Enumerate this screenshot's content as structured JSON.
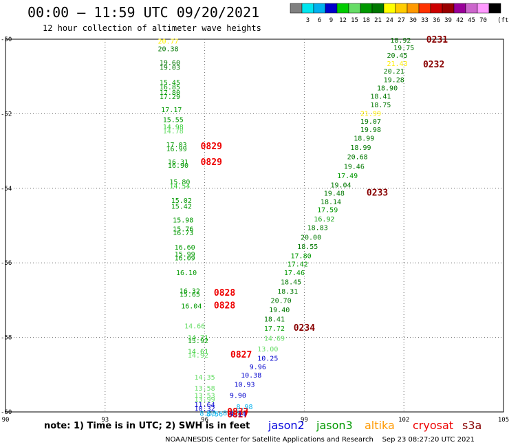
{
  "title": "00:00 — 11:59 UTC 09/20/2021",
  "subtitle": "12 hour collection of altimeter wave heights",
  "note": "note: 1) Time is in UTC; 2) SWH is in feet",
  "footer": "NOAA/NESDIS Center for Satellite Applications and Research    Sep 23 08:27:20 UTC 2021",
  "satellites": [
    {
      "name": "jason2",
      "color": "#0000dd"
    },
    {
      "name": "jason3",
      "color": "#009900"
    },
    {
      "name": "altika",
      "color": "#ff9900"
    },
    {
      "name": "cryosat",
      "color": "#ee0000"
    },
    {
      "name": "s3a",
      "color": "#880000"
    }
  ],
  "colorbar": {
    "unit": "(ft)",
    "labels": [
      "3",
      "6",
      "9",
      "12",
      "15",
      "18",
      "21",
      "24",
      "27",
      "30",
      "33",
      "36",
      "39",
      "42",
      "45",
      "70"
    ],
    "colors": [
      "#808080",
      "#00e5ee",
      "#00b0ee",
      "#0000cc",
      "#00cc00",
      "#66dd66",
      "#009900",
      "#007700",
      "#ffff00",
      "#ffcc00",
      "#ff9900",
      "#ff3300",
      "#cc0000",
      "#990000",
      "#990099",
      "#cc66cc",
      "#ff99ff",
      "#000000"
    ]
  },
  "chart_data": {
    "type": "scatter",
    "title": "00:00 — 11:59 UTC 09/20/2021",
    "xticks": [
      90,
      93,
      96,
      99,
      102,
      105
    ],
    "yticks": [
      -50,
      -52,
      -54,
      -56,
      -58,
      -60
    ],
    "xlim": [
      90,
      105
    ],
    "ylim": [
      -60.0,
      -50.0
    ],
    "grid": true,
    "series": [
      {
        "name": "wave heights",
        "points": [
          {
            "lon": 94.9,
            "lat": -50.05,
            "text": "20.77",
            "color": "#ffee00"
          },
          {
            "lon": 94.9,
            "lat": -50.25,
            "text": "20.38",
            "color": "#007700"
          },
          {
            "lon": 94.95,
            "lat": -50.62,
            "text": "19.60",
            "color": "#007700"
          },
          {
            "lon": 94.95,
            "lat": -50.75,
            "text": "19.03",
            "color": "#007700"
          },
          {
            "lon": 94.95,
            "lat": -51.15,
            "text": "15.45",
            "color": "#009900"
          },
          {
            "lon": 94.95,
            "lat": -51.27,
            "text": "16.85",
            "color": "#009900"
          },
          {
            "lon": 94.95,
            "lat": -51.42,
            "text": "17.80",
            "color": "#009900"
          },
          {
            "lon": 94.95,
            "lat": -51.53,
            "text": "17.29",
            "color": "#009900"
          },
          {
            "lon": 95.0,
            "lat": -51.88,
            "text": "17.17",
            "color": "#009900"
          },
          {
            "lon": 95.05,
            "lat": -52.15,
            "text": "15.55",
            "color": "#009900"
          },
          {
            "lon": 95.05,
            "lat": -52.34,
            "text": "14.98",
            "color": "#33cc33"
          },
          {
            "lon": 95.05,
            "lat": -52.45,
            "text": "14.78",
            "color": "#66dd66"
          },
          {
            "lon": 95.15,
            "lat": -52.82,
            "text": "17.03",
            "color": "#009900"
          },
          {
            "lon": 95.15,
            "lat": -52.93,
            "text": "16.99",
            "color": "#009900"
          },
          {
            "lon": 96.2,
            "lat": -52.88,
            "text": "0829",
            "color": "#ee0000"
          },
          {
            "lon": 95.2,
            "lat": -53.28,
            "text": "16.31",
            "color": "#009900"
          },
          {
            "lon": 95.2,
            "lat": -53.38,
            "text": "16.90",
            "color": "#009900"
          },
          {
            "lon": 96.2,
            "lat": -53.3,
            "text": "0829",
            "color": "#ee0000"
          },
          {
            "lon": 95.25,
            "lat": -53.82,
            "text": "15.80",
            "color": "#009900"
          },
          {
            "lon": 95.25,
            "lat": -53.93,
            "text": "14.54",
            "color": "#33cc33"
          },
          {
            "lon": 95.3,
            "lat": -54.32,
            "text": "15.02",
            "color": "#009900"
          },
          {
            "lon": 95.3,
            "lat": -54.47,
            "text": "15.42",
            "color": "#009900"
          },
          {
            "lon": 95.35,
            "lat": -54.84,
            "text": "15.98",
            "color": "#009900"
          },
          {
            "lon": 95.35,
            "lat": -55.08,
            "text": "15.76",
            "color": "#009900"
          },
          {
            "lon": 95.35,
            "lat": -55.18,
            "text": "16.73",
            "color": "#009900"
          },
          {
            "lon": 95.4,
            "lat": -55.57,
            "text": "16.60",
            "color": "#009900"
          },
          {
            "lon": 95.4,
            "lat": -55.76,
            "text": "15.99",
            "color": "#009900"
          },
          {
            "lon": 95.4,
            "lat": -55.86,
            "text": "16.09",
            "color": "#009900"
          },
          {
            "lon": 95.45,
            "lat": -56.25,
            "text": "16.10",
            "color": "#009900"
          },
          {
            "lon": 95.55,
            "lat": -56.74,
            "text": "16.32",
            "color": "#009900"
          },
          {
            "lon": 95.55,
            "lat": -56.84,
            "text": "15.65",
            "color": "#009900"
          },
          {
            "lon": 96.6,
            "lat": -56.81,
            "text": "0828",
            "color": "#ee0000"
          },
          {
            "lon": 95.6,
            "lat": -57.15,
            "text": "16.04",
            "color": "#009900"
          },
          {
            "lon": 96.6,
            "lat": -57.15,
            "text": "0828",
            "color": "#ee0000"
          },
          {
            "lon": 95.7,
            "lat": -57.68,
            "text": "14.66",
            "color": "#66dd66"
          },
          {
            "lon": 95.8,
            "lat": -58.0,
            "text": "14.71",
            "color": "#33cc33"
          },
          {
            "lon": 95.8,
            "lat": -58.08,
            "text": "15.92",
            "color": "#009900"
          },
          {
            "lon": 95.8,
            "lat": -58.37,
            "text": "14.61",
            "color": "#33cc33"
          },
          {
            "lon": 95.8,
            "lat": -58.47,
            "text": "14.92",
            "color": "#66dd66"
          },
          {
            "lon": 97.1,
            "lat": -58.47,
            "text": "0827",
            "color": "#ee0000"
          },
          {
            "lon": 96.0,
            "lat": -59.06,
            "text": "14.35",
            "color": "#66dd66"
          },
          {
            "lon": 96.0,
            "lat": -59.35,
            "text": "13.58",
            "color": "#66dd66"
          },
          {
            "lon": 96.0,
            "lat": -59.55,
            "text": "13.53",
            "color": "#66dd66"
          },
          {
            "lon": 96.0,
            "lat": -59.65,
            "text": "13.99",
            "color": "#66dd66"
          },
          {
            "lon": 96.0,
            "lat": -59.8,
            "text": "11.64",
            "color": "#0000cc"
          },
          {
            "lon": 96.0,
            "lat": -59.9,
            "text": "10.32",
            "color": "#0000cc"
          },
          {
            "lon": 96.1,
            "lat": -60.03,
            "text": "8.58",
            "color": "#00b0ee"
          },
          {
            "lon": 96.3,
            "lat": -60.05,
            "text": "8.56",
            "color": "#00b0ee"
          },
          {
            "lon": 96.8,
            "lat": -60.02,
            "text": "8.53",
            "color": "#00b0ee"
          },
          {
            "lon": 97.0,
            "lat": -60.0,
            "text": "0827",
            "color": "#ee0000"
          },
          {
            "lon": 97.0,
            "lat": -60.07,
            "text": "0827",
            "color": "#ee0000"
          },
          {
            "lon": 97.2,
            "lat": -59.85,
            "text": "8.98",
            "color": "#00b0ee"
          },
          {
            "lon": 97.0,
            "lat": -60.05,
            "text": "9.14",
            "color": "#0000cc"
          },
          {
            "lon": 97.0,
            "lat": -59.55,
            "text": "9.90",
            "color": "#0000cc"
          },
          {
            "lon": 97.2,
            "lat": -59.25,
            "text": "10.93",
            "color": "#0000cc"
          },
          {
            "lon": 97.4,
            "lat": -59.0,
            "text": "10.38",
            "color": "#0000cc"
          },
          {
            "lon": 97.6,
            "lat": -58.78,
            "text": "9.96",
            "color": "#0000cc"
          },
          {
            "lon": 97.9,
            "lat": -58.55,
            "text": "10.25",
            "color": "#0000cc"
          },
          {
            "lon": 97.9,
            "lat": -58.3,
            "text": "13.00",
            "color": "#66dd66"
          },
          {
            "lon": 98.1,
            "lat": -58.02,
            "text": "14.69",
            "color": "#66dd66"
          },
          {
            "lon": 98.1,
            "lat": -57.75,
            "text": "17.72",
            "color": "#009900"
          },
          {
            "lon": 99.0,
            "lat": -57.75,
            "text": "0234",
            "color": "#880000"
          },
          {
            "lon": 98.1,
            "lat": -57.5,
            "text": "18.41",
            "color": "#007700"
          },
          {
            "lon": 98.25,
            "lat": -57.25,
            "text": "19.40",
            "color": "#007700"
          },
          {
            "lon": 98.3,
            "lat": -57.0,
            "text": "20.70",
            "color": "#007700"
          },
          {
            "lon": 98.5,
            "lat": -56.75,
            "text": "18.31",
            "color": "#007700"
          },
          {
            "lon": 98.6,
            "lat": -56.5,
            "text": "18.45",
            "color": "#007700"
          },
          {
            "lon": 98.7,
            "lat": -56.25,
            "text": "17.46",
            "color": "#009900"
          },
          {
            "lon": 98.8,
            "lat": -56.02,
            "text": "17.42",
            "color": "#009900"
          },
          {
            "lon": 98.9,
            "lat": -55.8,
            "text": "17.80",
            "color": "#009900"
          },
          {
            "lon": 99.1,
            "lat": -55.55,
            "text": "18.55",
            "color": "#007700"
          },
          {
            "lon": 99.2,
            "lat": -55.3,
            "text": "20.00",
            "color": "#007700"
          },
          {
            "lon": 99.4,
            "lat": -55.05,
            "text": "18.83",
            "color": "#007700"
          },
          {
            "lon": 99.6,
            "lat": -54.82,
            "text": "16.92",
            "color": "#009900"
          },
          {
            "lon": 99.7,
            "lat": -54.57,
            "text": "17.59",
            "color": "#009900"
          },
          {
            "lon": 99.8,
            "lat": -54.35,
            "text": "18.14",
            "color": "#007700"
          },
          {
            "lon": 99.9,
            "lat": -54.12,
            "text": "19.48",
            "color": "#007700"
          },
          {
            "lon": 101.2,
            "lat": -54.12,
            "text": "0233",
            "color": "#880000"
          },
          {
            "lon": 100.1,
            "lat": -53.9,
            "text": "19.04",
            "color": "#007700"
          },
          {
            "lon": 100.3,
            "lat": -53.65,
            "text": "17.49",
            "color": "#009900"
          },
          {
            "lon": 100.5,
            "lat": -53.4,
            "text": "19.46",
            "color": "#007700"
          },
          {
            "lon": 100.6,
            "lat": -53.15,
            "text": "20.68",
            "color": "#007700"
          },
          {
            "lon": 100.7,
            "lat": -52.9,
            "text": "18.99",
            "color": "#007700"
          },
          {
            "lon": 100.8,
            "lat": -52.65,
            "text": "18.99",
            "color": "#007700"
          },
          {
            "lon": 101.0,
            "lat": -52.42,
            "text": "19.98",
            "color": "#007700"
          },
          {
            "lon": 101.0,
            "lat": -52.2,
            "text": "19.07",
            "color": "#007700"
          },
          {
            "lon": 101.0,
            "lat": -51.98,
            "text": "21.99",
            "color": "#ffee00"
          },
          {
            "lon": 101.3,
            "lat": -51.75,
            "text": "18.75",
            "color": "#007700"
          },
          {
            "lon": 101.3,
            "lat": -51.52,
            "text": "18.41",
            "color": "#007700"
          },
          {
            "lon": 101.5,
            "lat": -51.3,
            "text": "18.90",
            "color": "#007700"
          },
          {
            "lon": 101.7,
            "lat": -51.08,
            "text": "19.28",
            "color": "#007700"
          },
          {
            "lon": 101.7,
            "lat": -50.85,
            "text": "20.21",
            "color": "#007700"
          },
          {
            "lon": 101.8,
            "lat": -50.65,
            "text": "21.43",
            "color": "#ffee00"
          },
          {
            "lon": 102.9,
            "lat": -50.68,
            "text": "0232",
            "color": "#880000"
          },
          {
            "lon": 101.8,
            "lat": -50.42,
            "text": "20.45",
            "color": "#007700"
          },
          {
            "lon": 102.0,
            "lat": -50.22,
            "text": "19.75",
            "color": "#007700"
          },
          {
            "lon": 101.9,
            "lat": -50.02,
            "text": "18.92",
            "color": "#007700"
          },
          {
            "lon": 103.0,
            "lat": -50.02,
            "text": "0231",
            "color": "#880000"
          }
        ]
      }
    ]
  }
}
